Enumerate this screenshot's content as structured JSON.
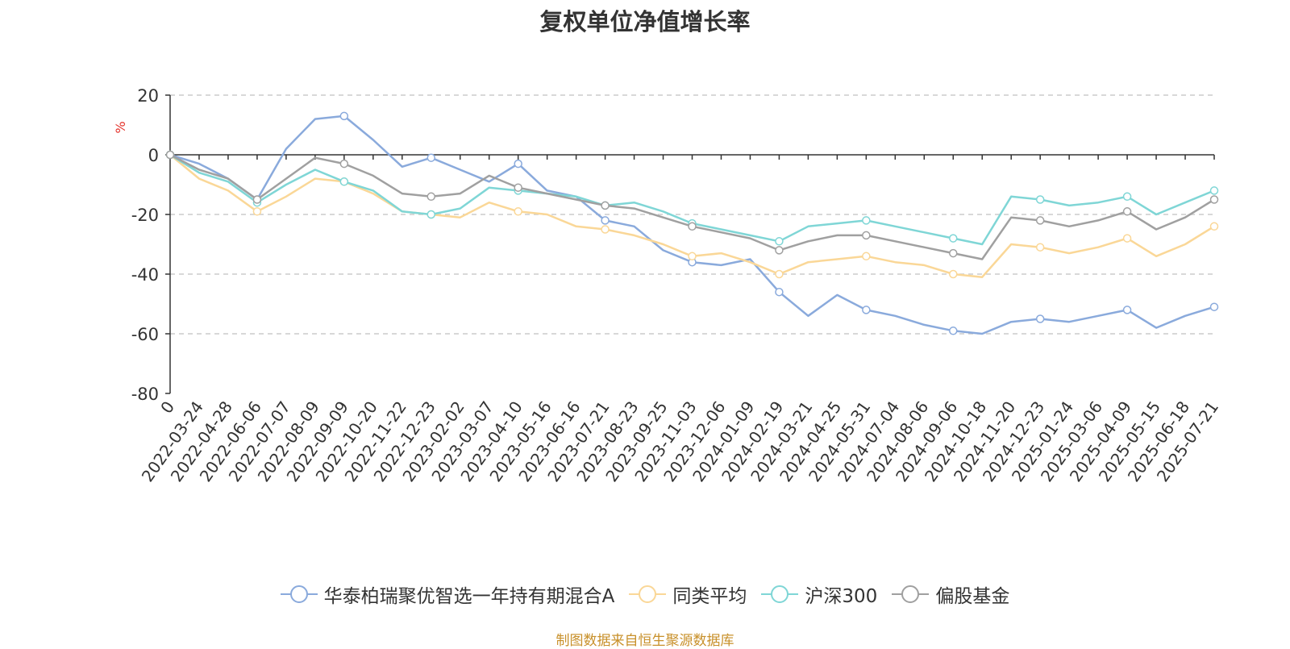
{
  "chart_data": {
    "type": "line",
    "title": "复权单位净值增长率",
    "ylabel": "%",
    "ylim": [
      -80,
      20
    ],
    "yticks": [
      20,
      0,
      -20,
      -40,
      -60,
      -80
    ],
    "grid": "horizontal dashed",
    "legend_position": "bottom",
    "x_tick_labels": [
      "0",
      "2022-03-24",
      "2022-04-28",
      "2022-06-06",
      "2022-07-07",
      "2022-08-09",
      "2022-09-09",
      "2022-10-20",
      "2022-11-22",
      "2022-12-23",
      "2023-02-02",
      "2023-03-07",
      "2023-04-10",
      "2023-05-16",
      "2023-06-16",
      "2023-07-21",
      "2023-08-23",
      "2023-09-25",
      "2023-11-03",
      "2023-12-06",
      "2024-01-09",
      "2024-02-19",
      "2024-03-21",
      "2024-04-25",
      "2024-05-31",
      "2024-07-04",
      "2024-08-06",
      "2024-09-06",
      "2024-10-18",
      "2024-11-20",
      "2024-12-23",
      "2025-01-24",
      "2025-03-06",
      "2025-04-09",
      "2025-05-15",
      "2025-06-18",
      "2025-07-21"
    ],
    "series": [
      {
        "name": "华泰柏瑞聚优智选一年持有期混合A",
        "color": "#8aaadc",
        "values": [
          0,
          -3,
          -8,
          -15,
          2,
          12,
          13,
          5,
          -4,
          -1,
          -5,
          -9,
          -3,
          -12,
          -14,
          -22,
          -24,
          -32,
          -36,
          -37,
          -35,
          -46,
          -54,
          -47,
          -52,
          -54,
          -57,
          -59,
          -60,
          -56,
          -55,
          -56,
          -54,
          -52,
          -58,
          -54,
          -51
        ]
      },
      {
        "name": "同类平均",
        "color": "#fad797",
        "values": [
          0,
          -8,
          -12,
          -19,
          -14,
          -8,
          -9,
          -13,
          -19,
          -20,
          -21,
          -16,
          -19,
          -20,
          -24,
          -25,
          -27,
          -30,
          -34,
          -33,
          -36,
          -40,
          -36,
          -35,
          -34,
          -36,
          -37,
          -40,
          -41,
          -30,
          -31,
          -33,
          -31,
          -28,
          -34,
          -30,
          -24
        ]
      },
      {
        "name": "沪深300",
        "color": "#7fd6d6",
        "values": [
          0,
          -6,
          -9,
          -16,
          -10,
          -5,
          -9,
          -12,
          -19,
          -20,
          -18,
          -11,
          -12,
          -13,
          -14,
          -17,
          -16,
          -19,
          -23,
          -25,
          -27,
          -29,
          -24,
          -23,
          -22,
          -24,
          -26,
          -28,
          -30,
          -14,
          -15,
          -17,
          -16,
          -14,
          -20,
          -16,
          -12
        ]
      },
      {
        "name": "偏股基金",
        "color": "#a0a0a0",
        "values": [
          0,
          -5,
          -8,
          -15,
          -8,
          -1,
          -3,
          -7,
          -13,
          -14,
          -13,
          -7,
          -11,
          -13,
          -15,
          -17,
          -18,
          -21,
          -24,
          -26,
          -28,
          -32,
          -29,
          -27,
          -27,
          -29,
          -31,
          -33,
          -35,
          -21,
          -22,
          -24,
          -22,
          -19,
          -25,
          -21,
          -15
        ]
      }
    ]
  },
  "source_note": "制图数据来自恒生聚源数据库"
}
